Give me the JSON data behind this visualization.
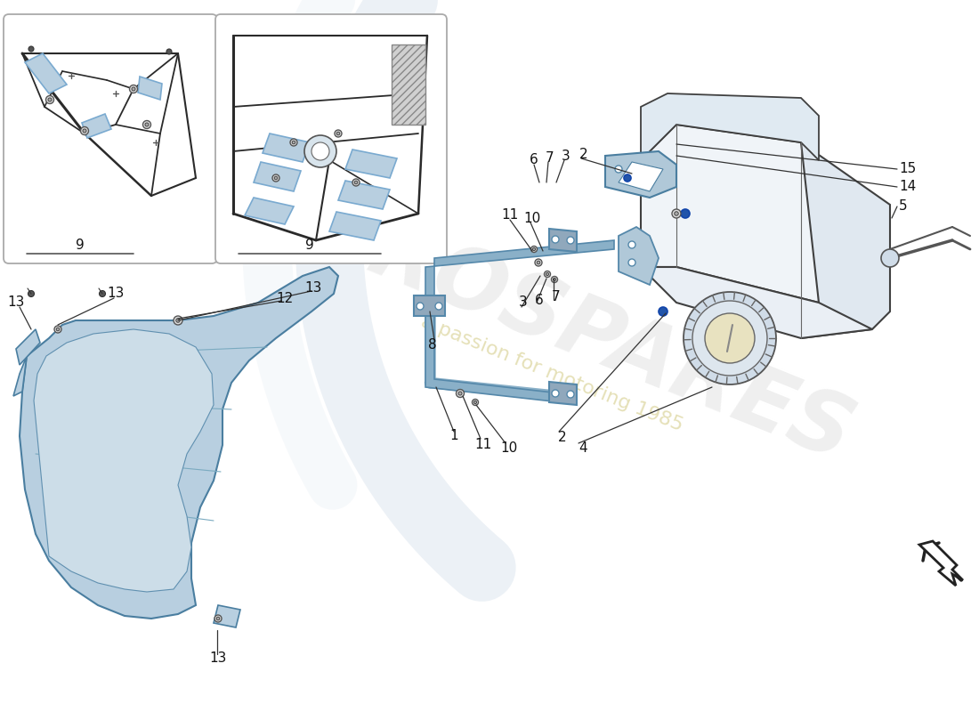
{
  "bg_color": "#ffffff",
  "light_blue": "#b8cfe0",
  "light_blue2": "#c8daea",
  "line_color": "#2a2a2a",
  "dark_line": "#111111",
  "bracket_blue": "#7aabbf",
  "strap_color": "#8ab0c8",
  "tank_outline": "#404040",
  "watermark_color": "#d8d8d8",
  "watermark_passion": "#d4cc88"
}
